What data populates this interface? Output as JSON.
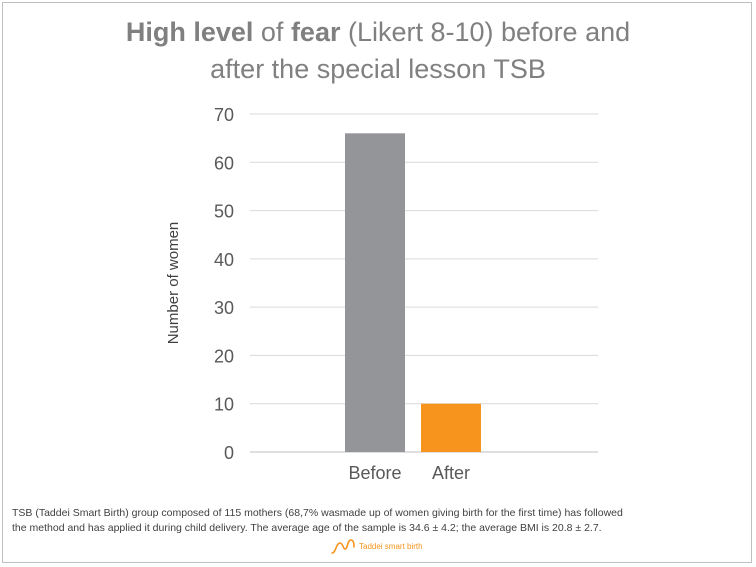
{
  "title": {
    "line1_b1": "High level",
    "line1_n1": " of ",
    "line1_b2": "fear",
    "line1_n2": " (Likert 8-10) before and",
    "line2": "after the special lesson TSB"
  },
  "chart_data": {
    "type": "bar",
    "categories": [
      "Before",
      "After"
    ],
    "values": [
      66,
      10
    ],
    "colors": [
      "#939598",
      "#f7941d"
    ],
    "ylabel": "Number of women",
    "ylim": [
      0,
      70
    ],
    "yticks": [
      0,
      10,
      20,
      30,
      40,
      50,
      60,
      70
    ],
    "grid": true
  },
  "footnote": {
    "line1": "TSB (Taddei Smart Birth) group composed of 115 mothers (68,7% wasmade up of women giving birth for the first time) has followed",
    "line2": "the method and has applied it during child delivery. The average age of the sample is 34.6 ± 4.2; the average BMI is 20.8 ± 2.7."
  },
  "logo": {
    "text": "Taddei smart birth",
    "icon": "taddei-logo-icon",
    "color": "#f7941d"
  }
}
